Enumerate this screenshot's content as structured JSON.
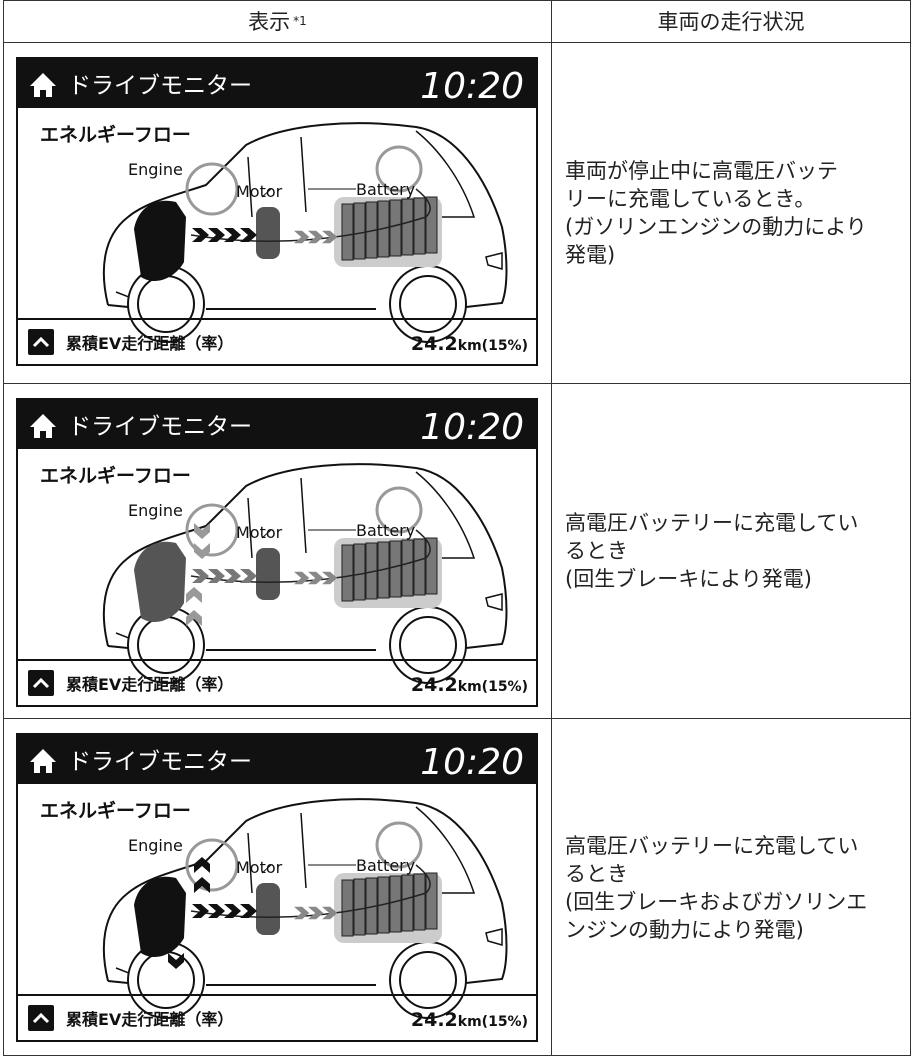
{
  "header": {
    "columns": [
      {
        "text": "表示",
        "note": "*1"
      },
      {
        "text": "車両の走行状況"
      }
    ]
  },
  "rows": [
    {
      "display": {
        "title": "ドライブモニター",
        "time": "10:20",
        "subtitle": "エネルギーフロー",
        "engine": "Engine",
        "motor": "Motor",
        "battery": "Battery",
        "footer_label": "累積EV走行距離（率）",
        "footer_value": "24.2",
        "footer_unit": "km(15%)"
      },
      "status": [
        "車両が停止中に高電圧バッテ",
        "リーに充電しているとき。",
        "(ガソリンエンジンの動力により",
        "発電)"
      ]
    },
    {
      "display": {
        "title": "ドライブモニター",
        "time": "10:20",
        "subtitle": "エネルギーフロー",
        "engine": "Engine",
        "motor": "Motor",
        "battery": "Battery",
        "footer_label": "累積EV走行距離（率）",
        "footer_value": "24.2",
        "footer_unit": "km(15%)"
      },
      "status": [
        "高電圧バッテリーに充電してい",
        "るとき",
        "(回生ブレーキにより発電)"
      ]
    },
    {
      "display": {
        "title": "ドライブモニター",
        "time": "10:20",
        "subtitle": "エネルギーフロー",
        "engine": "Engine",
        "motor": "Motor",
        "battery": "Battery",
        "footer_label": "累積EV走行距離（率）",
        "footer_value": "24.2",
        "footer_unit": "km(15%)"
      },
      "status": [
        "高電圧バッテリーに充電してい",
        "るとき",
        "(回生ブレーキおよびガソリンエ",
        "ンジンの動力により発電)"
      ]
    }
  ]
}
